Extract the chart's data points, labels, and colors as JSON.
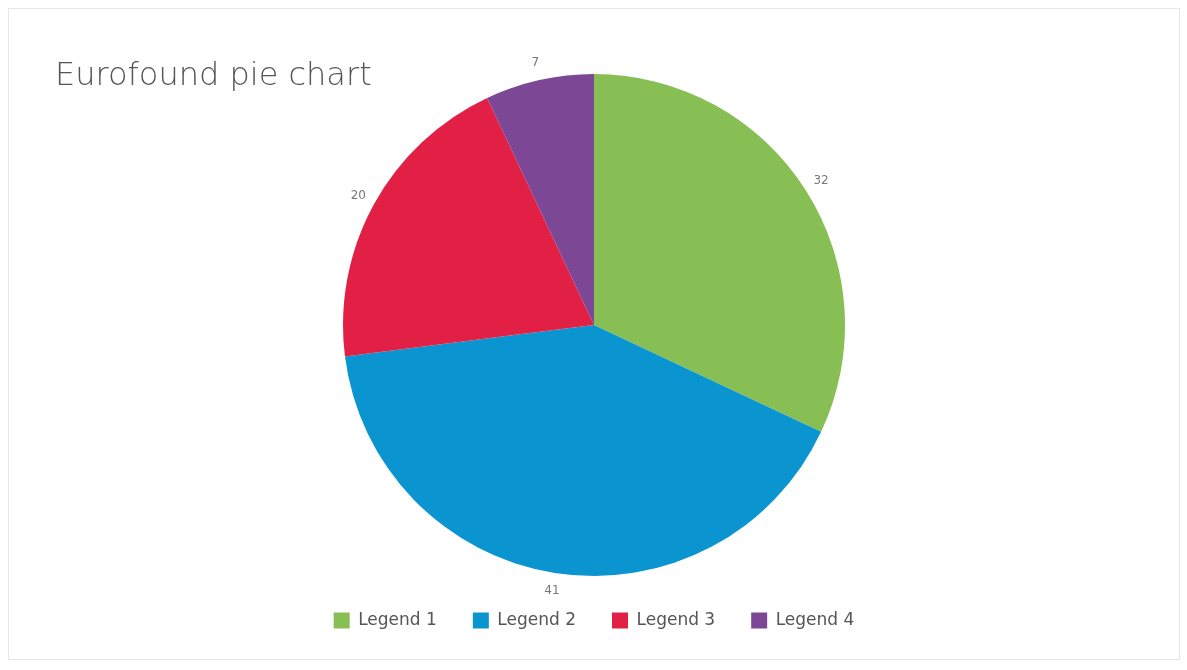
{
  "chart_data": {
    "type": "pie",
    "title": "Eurofound pie chart",
    "categories": [
      "Legend 1",
      "Legend 2",
      "Legend 3",
      "Legend 4"
    ],
    "values": [
      32,
      41,
      20,
      7
    ],
    "colors": [
      "#88bf54",
      "#0b95d0",
      "#e22046",
      "#7c4896"
    ],
    "data_labels": true,
    "legend": "bottom"
  }
}
